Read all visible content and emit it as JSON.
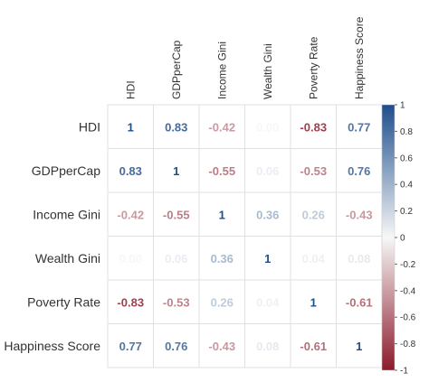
{
  "chart_data": {
    "type": "heatmap",
    "variables": [
      "HDI",
      "GDPperCap",
      "Income Gini",
      "Wealth Gini",
      "Poverty Rate",
      "Happiness Score"
    ],
    "matrix": [
      [
        1,
        0.83,
        -0.42,
        0.0,
        -0.83,
        0.77
      ],
      [
        0.83,
        1,
        -0.55,
        0.06,
        -0.53,
        0.76
      ],
      [
        -0.42,
        -0.55,
        1,
        0.36,
        0.26,
        -0.43
      ],
      [
        0.0,
        0.06,
        0.36,
        1,
        0.04,
        0.08
      ],
      [
        -0.83,
        -0.53,
        0.26,
        0.04,
        1,
        -0.61
      ],
      [
        0.77,
        0.76,
        -0.43,
        0.08,
        -0.61,
        1
      ]
    ],
    "colorbar": {
      "min": -1,
      "max": 1,
      "ticks": [
        "1",
        "0.8",
        "0.6",
        "0.4",
        "0.2",
        "0",
        "-0.2",
        "-0.4",
        "-0.6",
        "-0.8",
        "-1"
      ],
      "colors": {
        "negative": "#8b1a2b",
        "zero": "#f7f7f7",
        "positive": "#1f4e8c"
      }
    },
    "grid": true
  }
}
